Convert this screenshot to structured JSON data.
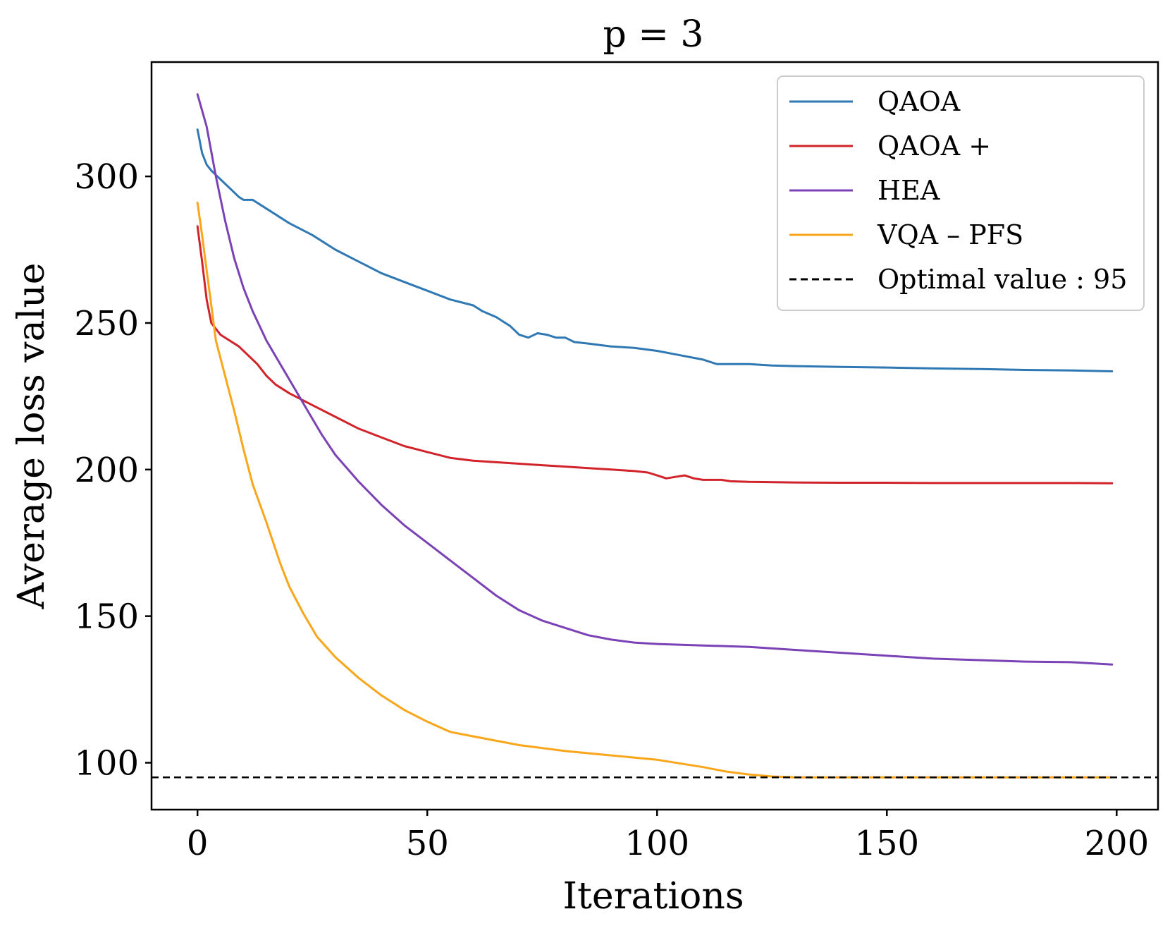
{
  "chart_data": {
    "type": "line",
    "title": "p = 3",
    "xlabel": "Iterations",
    "ylabel": "Average loss value",
    "xlim": [
      -10,
      209
    ],
    "ylim": [
      84,
      339
    ],
    "x_ticks": [
      0,
      50,
      100,
      150,
      200
    ],
    "y_ticks": [
      100,
      150,
      200,
      250,
      300
    ],
    "grid": false,
    "legend_position": "top-right",
    "series": [
      {
        "name": "QAOA",
        "color": "#2f78b4",
        "points": [
          [
            0,
            316
          ],
          [
            1,
            308
          ],
          [
            2,
            304
          ],
          [
            3,
            302
          ],
          [
            5,
            299
          ],
          [
            7,
            296
          ],
          [
            9,
            293
          ],
          [
            10,
            292
          ],
          [
            12,
            292
          ],
          [
            15,
            289
          ],
          [
            18,
            286
          ],
          [
            20,
            284
          ],
          [
            25,
            280
          ],
          [
            30,
            275
          ],
          [
            35,
            271
          ],
          [
            40,
            267
          ],
          [
            45,
            264
          ],
          [
            50,
            261
          ],
          [
            55,
            258
          ],
          [
            60,
            256
          ],
          [
            62,
            254
          ],
          [
            65,
            252
          ],
          [
            68,
            249
          ],
          [
            70,
            246
          ],
          [
            72,
            245
          ],
          [
            74,
            246.5
          ],
          [
            76,
            246
          ],
          [
            78,
            245
          ],
          [
            80,
            245
          ],
          [
            82,
            243.5
          ],
          [
            85,
            243
          ],
          [
            90,
            242
          ],
          [
            95,
            241.5
          ],
          [
            100,
            240.5
          ],
          [
            105,
            239
          ],
          [
            110,
            237.5
          ],
          [
            113,
            236
          ],
          [
            115,
            236
          ],
          [
            120,
            236
          ],
          [
            125,
            235.5
          ],
          [
            130,
            235.3
          ],
          [
            140,
            235
          ],
          [
            150,
            234.8
          ],
          [
            160,
            234.5
          ],
          [
            170,
            234.3
          ],
          [
            180,
            234
          ],
          [
            190,
            233.8
          ],
          [
            199,
            233.5
          ]
        ]
      },
      {
        "name": "QAOA +",
        "color": "#d2232a",
        "points": [
          [
            0,
            283
          ],
          [
            1,
            271
          ],
          [
            2,
            258
          ],
          [
            3,
            250
          ],
          [
            5,
            246
          ],
          [
            7,
            244
          ],
          [
            9,
            242
          ],
          [
            11,
            239
          ],
          [
            13,
            236
          ],
          [
            15,
            232
          ],
          [
            17,
            229
          ],
          [
            20,
            226
          ],
          [
            25,
            222
          ],
          [
            30,
            218
          ],
          [
            35,
            214
          ],
          [
            40,
            211
          ],
          [
            45,
            208
          ],
          [
            50,
            206
          ],
          [
            55,
            204
          ],
          [
            60,
            203
          ],
          [
            65,
            202.5
          ],
          [
            70,
            202
          ],
          [
            75,
            201.5
          ],
          [
            80,
            201
          ],
          [
            85,
            200.5
          ],
          [
            90,
            200
          ],
          [
            95,
            199.5
          ],
          [
            98,
            199
          ],
          [
            100,
            198
          ],
          [
            102,
            197
          ],
          [
            104,
            197.5
          ],
          [
            106,
            198
          ],
          [
            108,
            197
          ],
          [
            110,
            196.5
          ],
          [
            112,
            196.5
          ],
          [
            114,
            196.5
          ],
          [
            116,
            196
          ],
          [
            120,
            195.8
          ],
          [
            130,
            195.6
          ],
          [
            140,
            195.5
          ],
          [
            150,
            195.5
          ],
          [
            160,
            195.4
          ],
          [
            170,
            195.4
          ],
          [
            180,
            195.4
          ],
          [
            190,
            195.4
          ],
          [
            199,
            195.3
          ]
        ]
      },
      {
        "name": "HEA",
        "color": "#7b42b6",
        "points": [
          [
            0,
            328
          ],
          [
            2,
            317
          ],
          [
            4,
            300
          ],
          [
            6,
            285
          ],
          [
            8,
            272
          ],
          [
            10,
            262
          ],
          [
            12,
            254
          ],
          [
            15,
            244
          ],
          [
            18,
            236
          ],
          [
            21,
            228
          ],
          [
            24,
            220
          ],
          [
            27,
            212
          ],
          [
            30,
            205
          ],
          [
            35,
            196
          ],
          [
            40,
            188
          ],
          [
            45,
            181
          ],
          [
            50,
            175
          ],
          [
            55,
            169
          ],
          [
            60,
            163
          ],
          [
            65,
            157
          ],
          [
            70,
            152
          ],
          [
            75,
            148.5
          ],
          [
            80,
            146
          ],
          [
            85,
            143.5
          ],
          [
            90,
            142
          ],
          [
            95,
            141
          ],
          [
            100,
            140.5
          ],
          [
            110,
            140
          ],
          [
            120,
            139.5
          ],
          [
            130,
            138.5
          ],
          [
            140,
            137.5
          ],
          [
            150,
            136.5
          ],
          [
            160,
            135.5
          ],
          [
            170,
            135
          ],
          [
            180,
            134.5
          ],
          [
            190,
            134.3
          ],
          [
            199,
            133.5
          ]
        ]
      },
      {
        "name": "VQA – PFS",
        "color": "#f9a61a",
        "points": [
          [
            0,
            291
          ],
          [
            1,
            280
          ],
          [
            2,
            268
          ],
          [
            3,
            256
          ],
          [
            4,
            244
          ],
          [
            6,
            232
          ],
          [
            8,
            220
          ],
          [
            10,
            207
          ],
          [
            12,
            195
          ],
          [
            15,
            182
          ],
          [
            18,
            168
          ],
          [
            20,
            160
          ],
          [
            23,
            151
          ],
          [
            26,
            143
          ],
          [
            30,
            136
          ],
          [
            35,
            129
          ],
          [
            40,
            123
          ],
          [
            45,
            118
          ],
          [
            50,
            114
          ],
          [
            55,
            110.5
          ],
          [
            60,
            109
          ],
          [
            70,
            106
          ],
          [
            80,
            104
          ],
          [
            90,
            102.5
          ],
          [
            100,
            101
          ],
          [
            110,
            98.5
          ],
          [
            115,
            97
          ],
          [
            120,
            96
          ],
          [
            125,
            95.3
          ],
          [
            130,
            95
          ],
          [
            150,
            95
          ],
          [
            170,
            95
          ],
          [
            185,
            95
          ],
          [
            199,
            95
          ]
        ]
      },
      {
        "name": "Optimal value :  95",
        "color": "#000000",
        "dashed": true,
        "constant": 95
      }
    ]
  }
}
